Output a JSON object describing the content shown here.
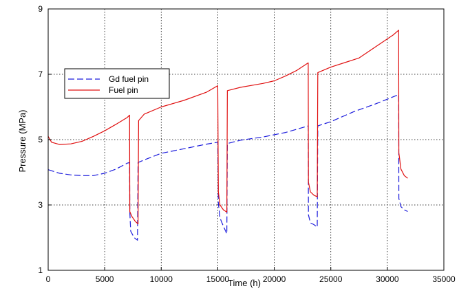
{
  "chart_data": {
    "type": "line",
    "xlabel": "Time (h)",
    "ylabel": "Pressure  (MPa)",
    "xlim": [
      0,
      35000
    ],
    "ylim": [
      1,
      9
    ],
    "xticks": [
      0,
      5000,
      10000,
      15000,
      20000,
      25000,
      30000,
      35000
    ],
    "yticks": [
      1,
      3,
      5,
      7,
      9
    ],
    "grid": true,
    "legend_position": "upper-left",
    "colors": {
      "gd": "#1a1adc",
      "fuel": "#e01010"
    },
    "series": [
      {
        "name": "Gd fuel pin",
        "color": "#1a1adc",
        "style": "dashed",
        "points": [
          [
            0,
            4.08
          ],
          [
            1000,
            3.97
          ],
          [
            2000,
            3.92
          ],
          [
            3000,
            3.9
          ],
          [
            4000,
            3.9
          ],
          [
            5000,
            3.97
          ],
          [
            6000,
            4.1
          ],
          [
            7000,
            4.28
          ],
          [
            7200,
            4.3
          ],
          [
            7220,
            2.8
          ],
          [
            7300,
            2.2
          ],
          [
            7600,
            2.0
          ],
          [
            7900,
            1.92
          ],
          [
            7950,
            4.3
          ],
          [
            8500,
            4.38
          ],
          [
            10000,
            4.58
          ],
          [
            12000,
            4.72
          ],
          [
            14000,
            4.86
          ],
          [
            15000,
            4.92
          ],
          [
            15050,
            3.05
          ],
          [
            15200,
            2.6
          ],
          [
            15500,
            2.35
          ],
          [
            15800,
            2.12
          ],
          [
            15850,
            4.88
          ],
          [
            17000,
            4.98
          ],
          [
            19000,
            5.08
          ],
          [
            21000,
            5.22
          ],
          [
            23000,
            5.42
          ],
          [
            23020,
            2.7
          ],
          [
            23200,
            2.45
          ],
          [
            23500,
            2.4
          ],
          [
            23800,
            2.32
          ],
          [
            23850,
            5.42
          ],
          [
            25000,
            5.55
          ],
          [
            27000,
            5.85
          ],
          [
            29000,
            6.1
          ],
          [
            31000,
            6.38
          ],
          [
            31020,
            3.2
          ],
          [
            31200,
            2.95
          ],
          [
            31500,
            2.85
          ],
          [
            31800,
            2.8
          ]
        ]
      },
      {
        "name": "Fuel pin",
        "color": "#e01010",
        "style": "solid",
        "points": [
          [
            0,
            5.1
          ],
          [
            300,
            4.92
          ],
          [
            1000,
            4.85
          ],
          [
            2000,
            4.87
          ],
          [
            3000,
            4.95
          ],
          [
            4000,
            5.1
          ],
          [
            5000,
            5.27
          ],
          [
            6000,
            5.47
          ],
          [
            7000,
            5.68
          ],
          [
            7200,
            5.75
          ],
          [
            7220,
            2.8
          ],
          [
            7400,
            2.65
          ],
          [
            7700,
            2.5
          ],
          [
            7950,
            2.42
          ],
          [
            8000,
            5.58
          ],
          [
            8500,
            5.78
          ],
          [
            10000,
            6.0
          ],
          [
            12000,
            6.2
          ],
          [
            14000,
            6.45
          ],
          [
            15000,
            6.65
          ],
          [
            15050,
            3.4
          ],
          [
            15200,
            3.0
          ],
          [
            15500,
            2.85
          ],
          [
            15800,
            2.78
          ],
          [
            15850,
            6.5
          ],
          [
            17000,
            6.6
          ],
          [
            19000,
            6.72
          ],
          [
            20000,
            6.8
          ],
          [
            21000,
            6.95
          ],
          [
            22000,
            7.12
          ],
          [
            23000,
            7.35
          ],
          [
            23020,
            3.7
          ],
          [
            23200,
            3.4
          ],
          [
            23500,
            3.3
          ],
          [
            23800,
            3.25
          ],
          [
            23850,
            7.05
          ],
          [
            25000,
            7.22
          ],
          [
            27500,
            7.5
          ],
          [
            29000,
            7.85
          ],
          [
            30500,
            8.2
          ],
          [
            31000,
            8.35
          ],
          [
            31020,
            4.6
          ],
          [
            31200,
            4.1
          ],
          [
            31500,
            3.9
          ],
          [
            31800,
            3.82
          ]
        ]
      }
    ]
  }
}
